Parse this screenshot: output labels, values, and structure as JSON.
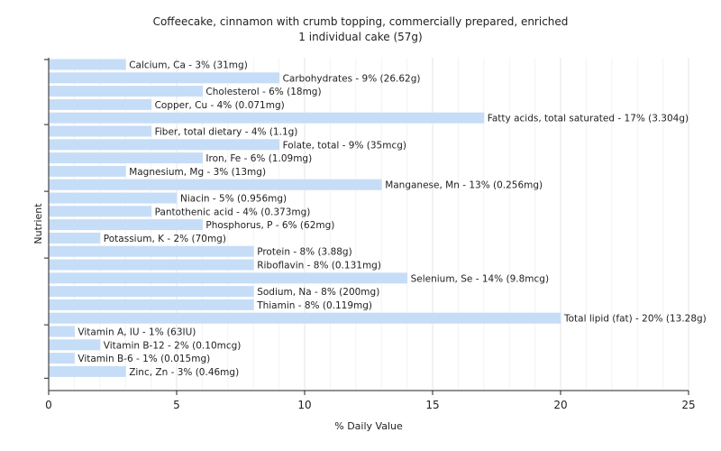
{
  "chart_data": {
    "type": "bar",
    "orientation": "horizontal",
    "title": "Coffeecake, cinnamon with crumb topping, commercially prepared, enriched",
    "subtitle": "1 individual cake (57g)",
    "xlabel": "% Daily Value",
    "ylabel": "Nutrient",
    "xlim": [
      0,
      25
    ],
    "xticks": [
      0,
      5,
      10,
      15,
      20,
      25
    ],
    "grid": true,
    "bar_color": "#c6ddf7",
    "categories": [
      "Calcium, Ca",
      "Carbohydrates",
      "Cholesterol",
      "Copper, Cu",
      "Fatty acids, total saturated",
      "Fiber, total dietary",
      "Folate, total",
      "Iron, Fe",
      "Magnesium, Mg",
      "Manganese, Mn",
      "Niacin",
      "Pantothenic acid",
      "Phosphorus, P",
      "Potassium, K",
      "Protein",
      "Riboflavin",
      "Selenium, Se",
      "Sodium, Na",
      "Thiamin",
      "Total lipid (fat)",
      "Vitamin A, IU",
      "Vitamin B-12",
      "Vitamin B-6",
      "Zinc, Zn"
    ],
    "values": [
      3,
      9,
      6,
      4,
      17,
      4,
      9,
      6,
      3,
      13,
      5,
      4,
      6,
      2,
      8,
      8,
      14,
      8,
      8,
      20,
      1,
      2,
      1,
      3
    ],
    "labels": [
      "Calcium, Ca - 3% (31mg)",
      "Carbohydrates - 9% (26.62g)",
      "Cholesterol - 6% (18mg)",
      "Copper, Cu - 4% (0.071mg)",
      "Fatty acids, total saturated - 17% (3.304g)",
      "Fiber, total dietary - 4% (1.1g)",
      "Folate, total - 9% (35mcg)",
      "Iron, Fe - 6% (1.09mg)",
      "Magnesium, Mg - 3% (13mg)",
      "Manganese, Mn - 13% (0.256mg)",
      "Niacin - 5% (0.956mg)",
      "Pantothenic acid - 4% (0.373mg)",
      "Phosphorus, P - 6% (62mg)",
      "Potassium, K - 2% (70mg)",
      "Protein - 8% (3.88g)",
      "Riboflavin - 8% (0.131mg)",
      "Selenium, Se - 14% (9.8mcg)",
      "Sodium, Na - 8% (200mg)",
      "Thiamin - 8% (0.119mg)",
      "Total lipid (fat) - 20% (13.28g)",
      "Vitamin A, IU - 1% (63IU)",
      "Vitamin B-12 - 2% (0.10mcg)",
      "Vitamin B-6 - 1% (0.015mg)",
      "Zinc, Zn - 3% (0.46mg)"
    ]
  }
}
